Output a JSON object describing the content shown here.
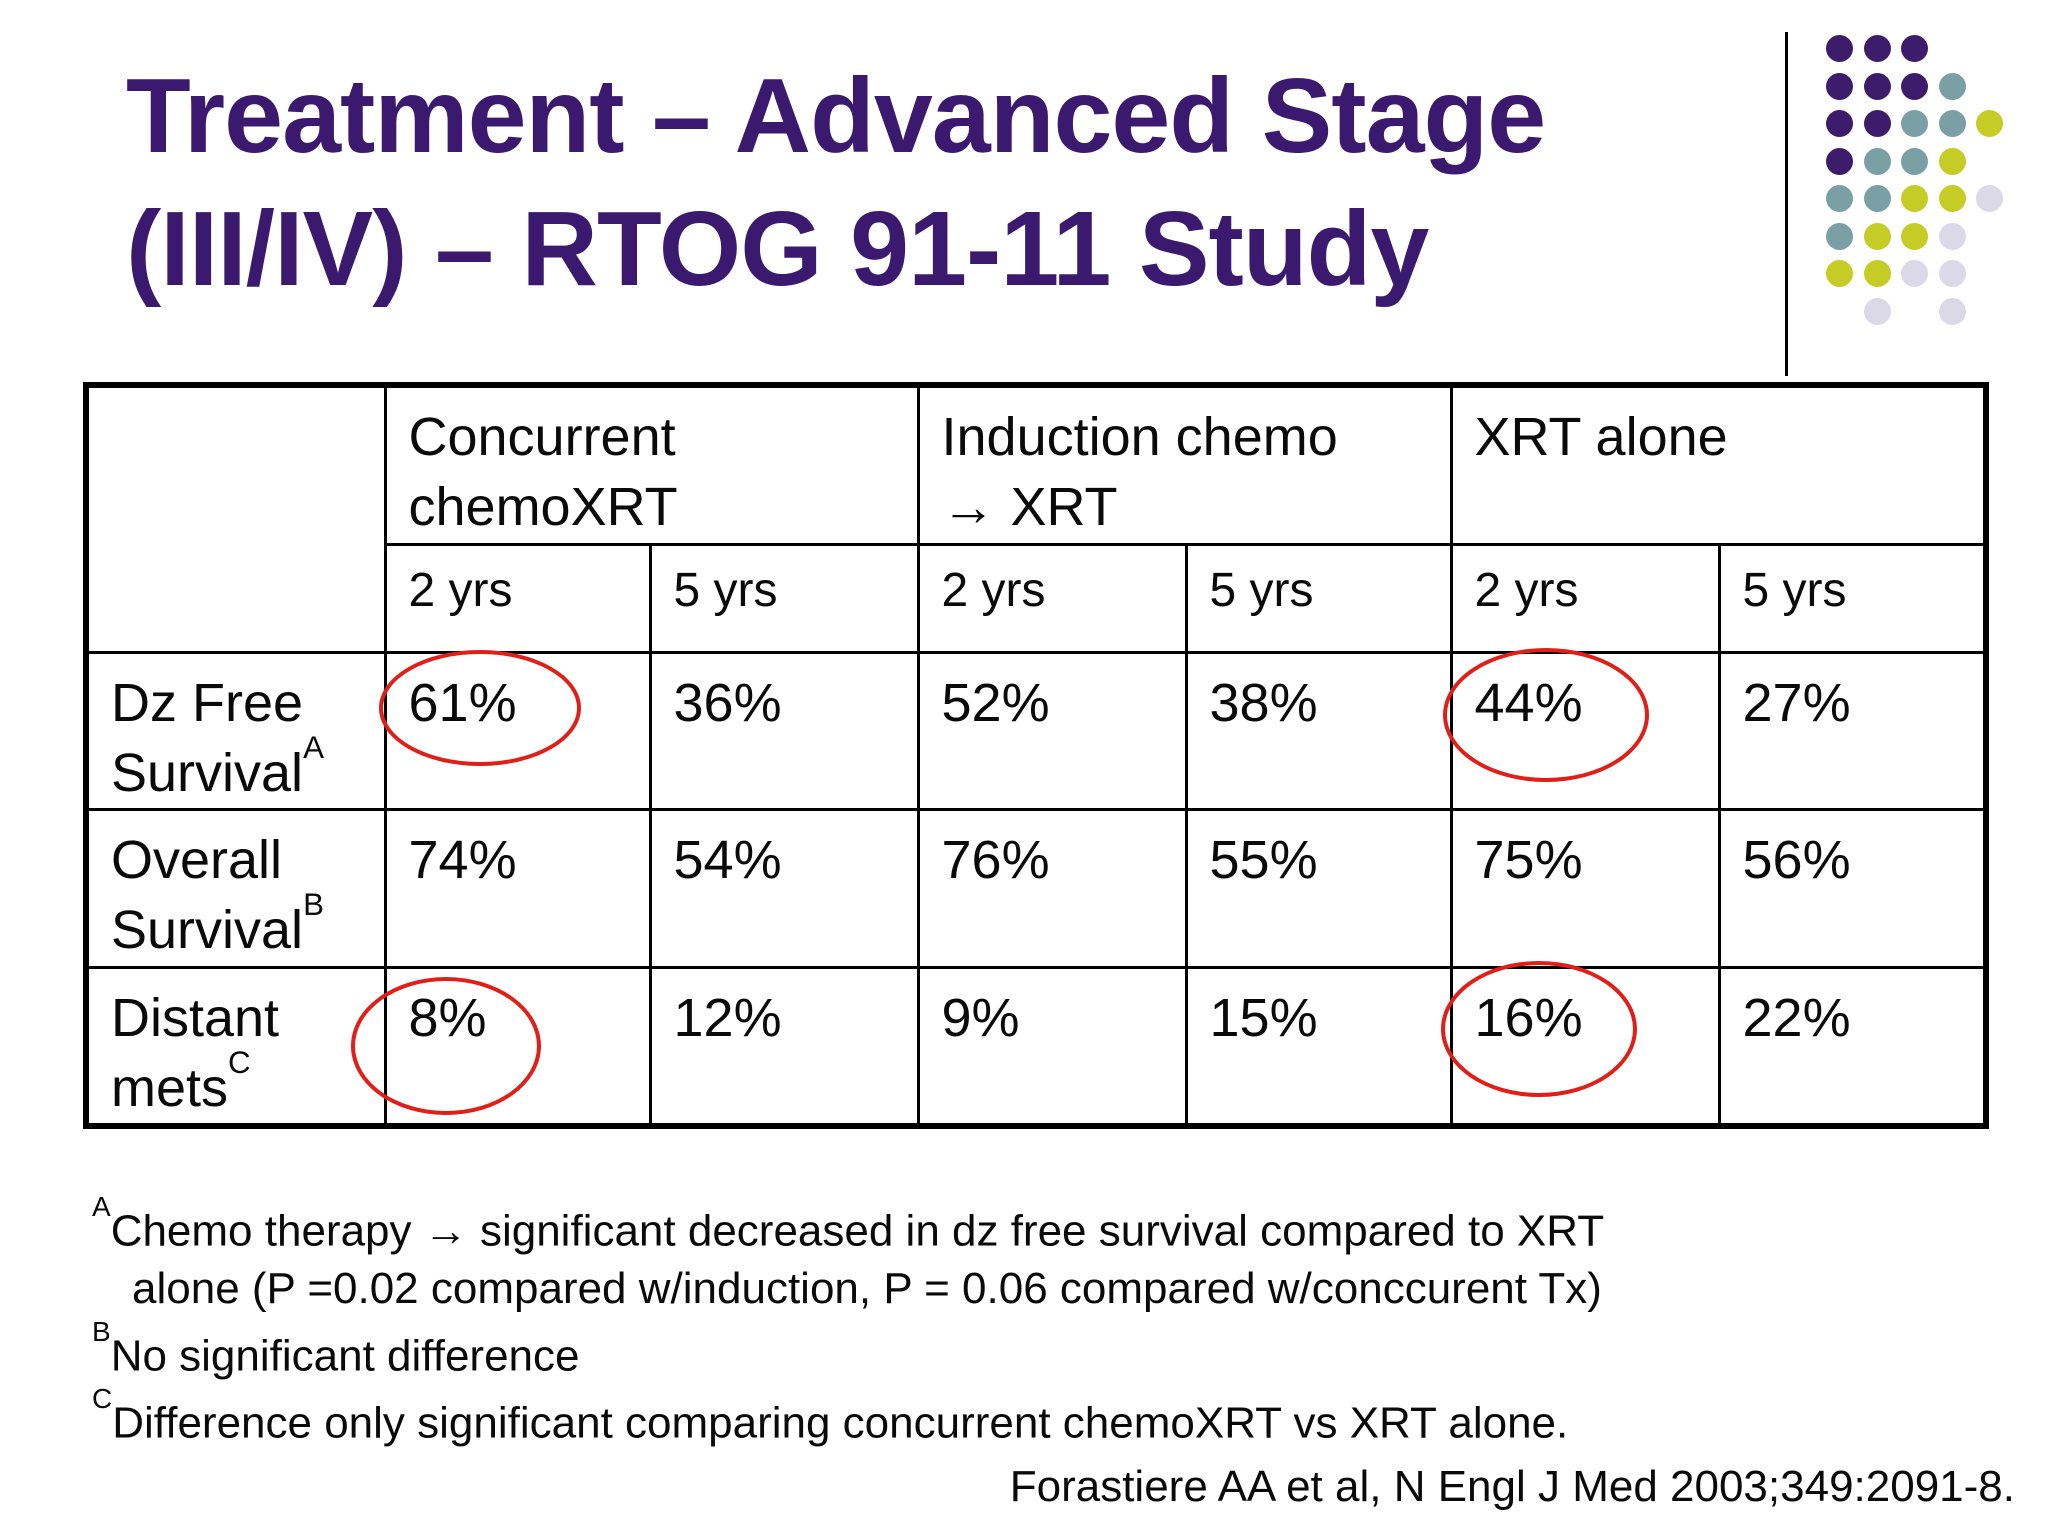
{
  "slide": {
    "title_lines": [
      "Treatment – Advanced Stage",
      "(III/IV) – RTOG 91-11 Study"
    ],
    "title_color": "#3a196f"
  },
  "decoration": {
    "dot_colors": {
      "P": "#3d1d6b",
      "T": "#7aa0a5",
      "Y": "#c5cc26",
      "L": "#dbd9e7"
    },
    "dot_rows": [
      "PPP..",
      "PPPT.",
      "PPTTY",
      "PTTY.",
      "TTYYL",
      "TYYL.",
      "YYLL.",
      ".L.L."
    ]
  },
  "table": {
    "group_headers": [
      {
        "lines": [
          "Concurrent",
          "chemoXRT"
        ]
      },
      {
        "lines": [
          "Induction chemo",
          "→ XRT"
        ]
      },
      {
        "lines": [
          "XRT alone"
        ]
      }
    ],
    "sub_headers": [
      "2 yrs",
      "5 yrs",
      "2 yrs",
      "5 yrs",
      "2 yrs",
      "5 yrs"
    ],
    "rows": [
      {
        "label_lines": [
          "Dz Free",
          "Survival"
        ],
        "sup": "A",
        "values": [
          "61%",
          "36%",
          "52%",
          "38%",
          "44%",
          "27%"
        ],
        "circled_value_indexes": [
          0,
          4
        ]
      },
      {
        "label_lines": [
          "Overall",
          "Survival"
        ],
        "sup": "B",
        "values": [
          "74%",
          "54%",
          "76%",
          "55%",
          "75%",
          "56%"
        ],
        "circled_value_indexes": []
      },
      {
        "label_lines": [
          "Distant",
          "mets"
        ],
        "sup": "C",
        "values": [
          "8%",
          "12%",
          "9%",
          "15%",
          "16%",
          "22%"
        ],
        "circled_value_indexes": [
          0,
          4
        ]
      }
    ],
    "highlight_color": "#e02018"
  },
  "footnotes": [
    {
      "sup": "A",
      "text": "Chemo therapy → significant decreased in dz free survival compared to XRT"
    },
    {
      "sup": "",
      "text": "alone (P =0.02 compared w/induction, P = 0.06 compared w/conccurent Tx)"
    },
    {
      "sup": "B",
      "text": "No significant difference"
    },
    {
      "sup": "C",
      "text": "Difference only significant comparing concurrent chemoXRT vs XRT alone."
    }
  ],
  "citation": "Forastiere AA et al, N Engl J Med 2003;349:2091-8."
}
